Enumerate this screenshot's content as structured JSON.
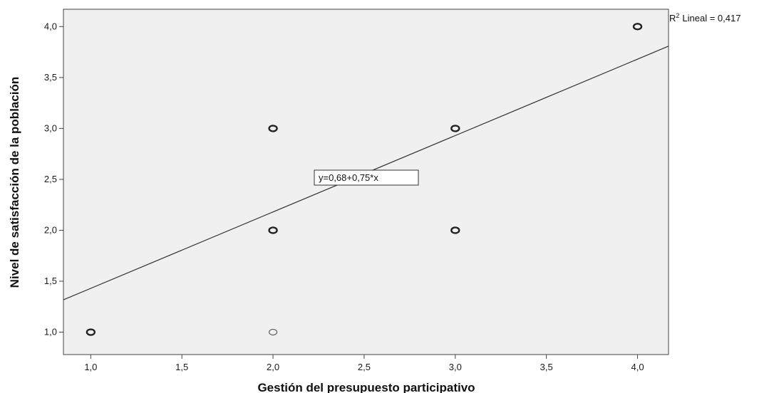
{
  "chart_data": {
    "type": "scatter",
    "xlabel": "Gestión del presupuesto participativo",
    "ylabel": "Nivel de satisfacción de la población",
    "xlim": [
      0.85,
      4.17
    ],
    "ylim": [
      0.78,
      4.17
    ],
    "x_ticks": [
      "1,0",
      "1,5",
      "2,0",
      "2,5",
      "3,0",
      "3,5",
      "4,0"
    ],
    "y_ticks": [
      "1,0",
      "1,5",
      "2,0",
      "2,5",
      "3,0",
      "3,5",
      "4,0"
    ],
    "points": [
      {
        "x": 1,
        "y": 1,
        "bold": true
      },
      {
        "x": 2,
        "y": 1,
        "bold": false
      },
      {
        "x": 2,
        "y": 2,
        "bold": true
      },
      {
        "x": 2,
        "y": 3,
        "bold": true
      },
      {
        "x": 3,
        "y": 2,
        "bold": true
      },
      {
        "x": 3,
        "y": 3,
        "bold": true
      },
      {
        "x": 4,
        "y": 4,
        "bold": true
      }
    ],
    "fit_line": {
      "intercept": 0.68,
      "slope": 0.75
    },
    "equation_label": "y=0,68+0,75*x",
    "r2_label": "Lineal = 0,417",
    "r2_prefix": "R",
    "r2_sup": "2",
    "grid": false,
    "colors": {
      "plot_bg": "#f0f0f0",
      "marker": "#222222",
      "line": "#333333"
    }
  }
}
